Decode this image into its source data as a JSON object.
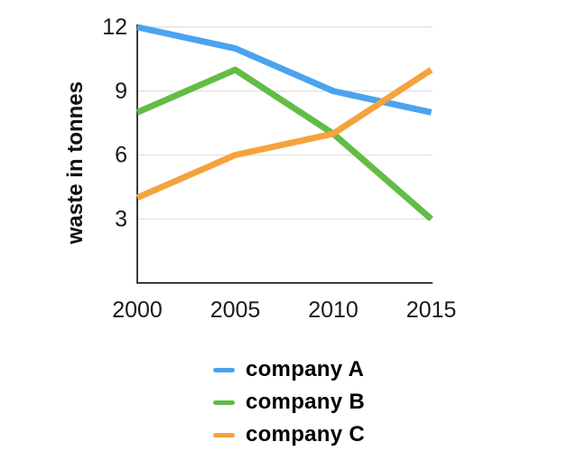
{
  "page": {
    "background": "#ffffff"
  },
  "chart_data": {
    "type": "line",
    "title": "",
    "xlabel": "",
    "ylabel": "waste in tonnes",
    "categories": [
      "2000",
      "2005",
      "2010",
      "2015"
    ],
    "y_ticks": [
      3,
      6,
      9,
      12
    ],
    "ylim": [
      0,
      12
    ],
    "grid": true,
    "legend_position": "bottom-center",
    "axis_color": "#3c3c3c",
    "grid_color": "#e4e4e4",
    "tick_label_color": "#1a1a1a",
    "line_width": 7,
    "series": [
      {
        "name": "company A",
        "color": "#4ba3ee",
        "values": [
          12,
          11,
          9,
          8
        ]
      },
      {
        "name": "company B",
        "color": "#63bc46",
        "values": [
          8,
          10,
          7,
          3
        ]
      },
      {
        "name": "company C",
        "color": "#f4a33d",
        "values": [
          4,
          6,
          7,
          10
        ]
      }
    ]
  }
}
